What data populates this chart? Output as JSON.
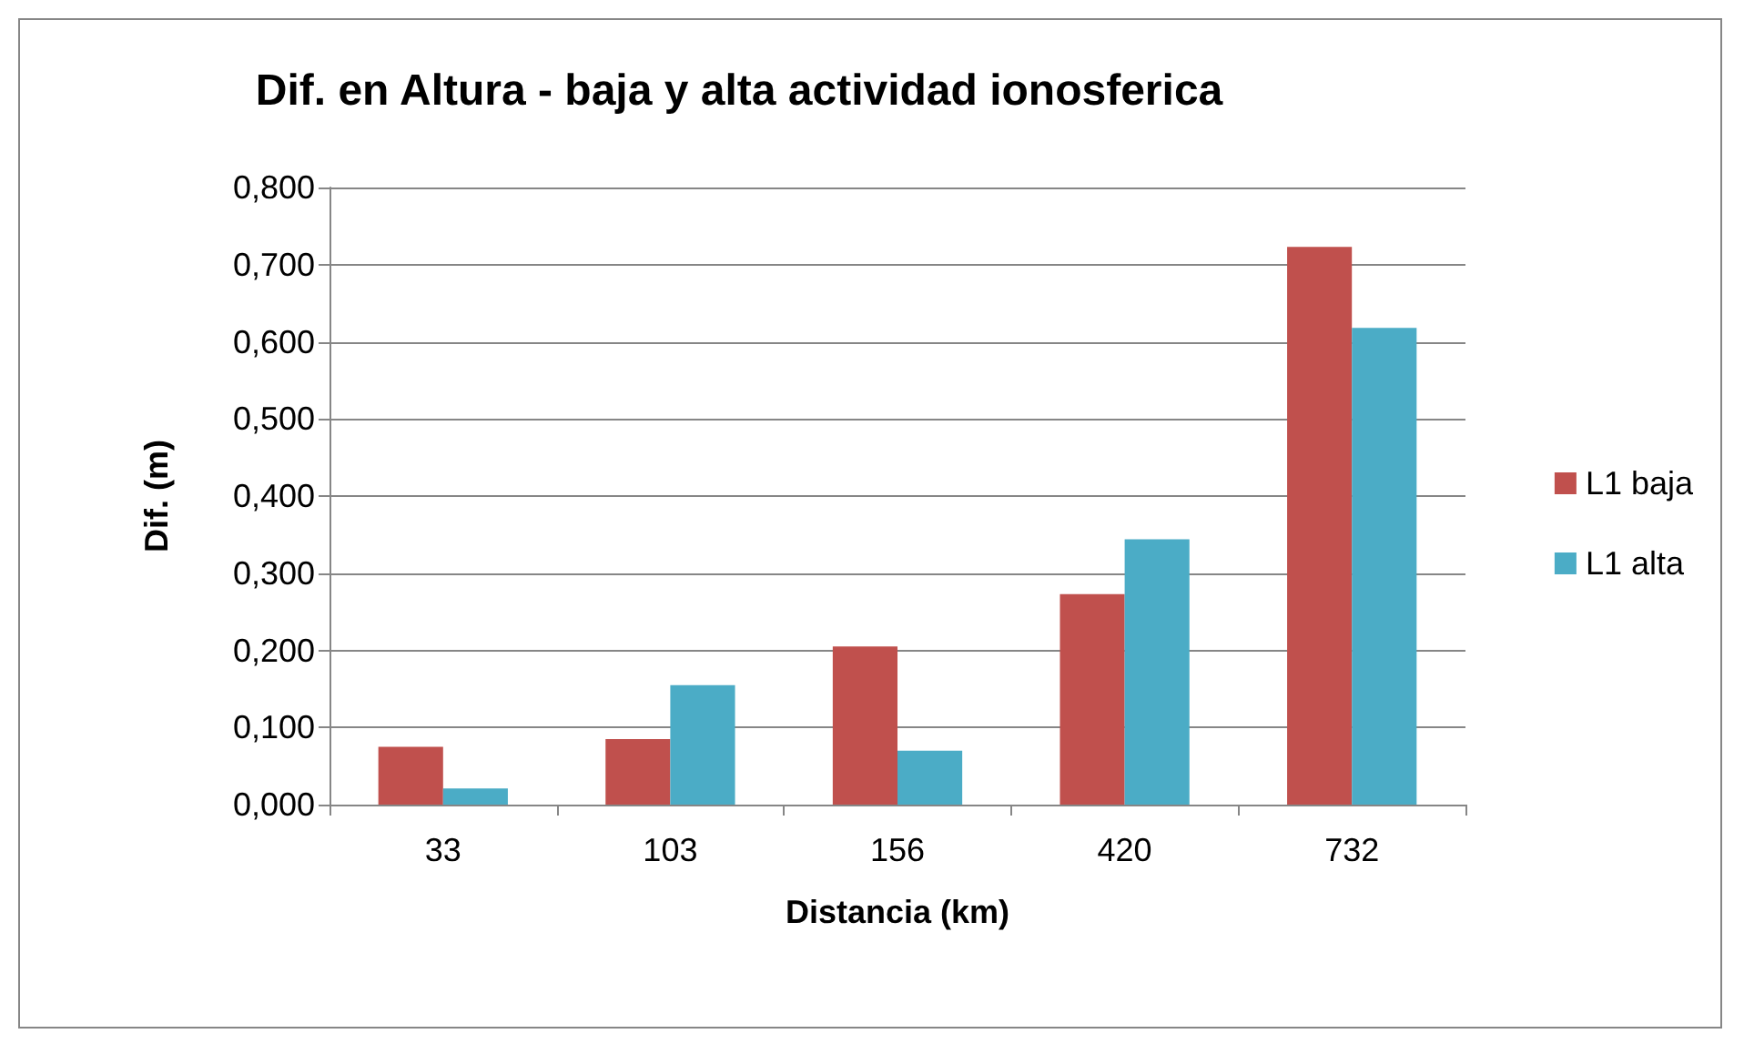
{
  "chart_data": {
    "type": "bar",
    "title": "Dif. en Altura - baja y alta actividad ionosferica",
    "xlabel": "Distancia (km)",
    "ylabel": "Dif. (m)",
    "categories": [
      "33",
      "103",
      "156",
      "420",
      "732"
    ],
    "series": [
      {
        "name": "L1 baja",
        "color": "#c0504d",
        "values": [
          0.075,
          0.085,
          0.205,
          0.273,
          0.723
        ]
      },
      {
        "name": "L1 alta",
        "color": "#4bacc6",
        "values": [
          0.021,
          0.155,
          0.07,
          0.344,
          0.618
        ]
      }
    ],
    "ylim": [
      0,
      0.8
    ],
    "yticks": [
      {
        "value": 0,
        "label": "0,000"
      },
      {
        "value": 0.1,
        "label": "0,100"
      },
      {
        "value": 0.2,
        "label": "0,200"
      },
      {
        "value": 0.3,
        "label": "0,300"
      },
      {
        "value": 0.4,
        "label": "0,400"
      },
      {
        "value": 0.5,
        "label": "0,500"
      },
      {
        "value": 0.6,
        "label": "0,600"
      },
      {
        "value": 0.7,
        "label": "0,700"
      },
      {
        "value": 0.8,
        "label": "0,800"
      }
    ],
    "grid": "y",
    "legend": "right"
  }
}
